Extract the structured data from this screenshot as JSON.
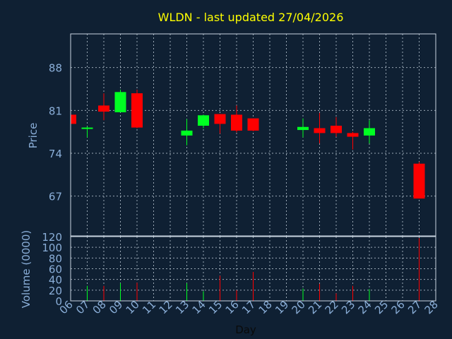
{
  "chart_data": {
    "type": "candlestick",
    "title": "WLDN - last updated 27/04/2026",
    "xlabel": "Day",
    "ylabel": "Price",
    "volume_label": "Volume (0000)",
    "x_ticks": [
      "06",
      "07",
      "08",
      "09",
      "10",
      "11",
      "12",
      "13",
      "14",
      "15",
      "16",
      "17",
      "18",
      "19",
      "20",
      "21",
      "22",
      "23",
      "24",
      "25",
      "26",
      "27",
      "28"
    ],
    "price_ticks": [
      67,
      74,
      81,
      88
    ],
    "volume_ticks": [
      0,
      20,
      40,
      60,
      80,
      100,
      120
    ],
    "price_range": [
      60.5,
      93.5
    ],
    "volume_range": [
      0,
      120
    ],
    "grid": true,
    "colors": {
      "background": "#0f2033",
      "title": "#ffff00",
      "up": "#00ff22",
      "down": "#ff0000",
      "axis_text": "#8aaed8",
      "grid": "#c8d4e0"
    },
    "candles": [
      {
        "day": "06",
        "open": 80.3,
        "high": 80.3,
        "low": 78.8,
        "close": 78.8,
        "volume": 0
      },
      {
        "day": "07",
        "open": 78.1,
        "high": 78.4,
        "low": 76.6,
        "close": 78.2,
        "volume": 28
      },
      {
        "day": "08",
        "open": 81.8,
        "high": 83.8,
        "low": 79.4,
        "close": 80.8,
        "volume": 28
      },
      {
        "day": "09",
        "open": 80.7,
        "high": 84.4,
        "low": 80.7,
        "close": 84.0,
        "volume": 33
      },
      {
        "day": "10",
        "open": 83.8,
        "high": 84.4,
        "low": 78.1,
        "close": 78.2,
        "volume": 34
      },
      {
        "day": "13",
        "open": 76.9,
        "high": 79.6,
        "low": 75.3,
        "close": 77.7,
        "volume": 33
      },
      {
        "day": "14",
        "open": 78.5,
        "high": 80.3,
        "low": 78.1,
        "close": 80.2,
        "volume": 18
      },
      {
        "day": "15",
        "open": 80.4,
        "high": 80.4,
        "low": 77.2,
        "close": 78.8,
        "volume": 47
      },
      {
        "day": "16",
        "open": 80.3,
        "high": 81.8,
        "low": 77.4,
        "close": 77.7,
        "volume": 20
      },
      {
        "day": "17",
        "open": 79.7,
        "high": 79.7,
        "low": 77.6,
        "close": 77.7,
        "volume": 54
      },
      {
        "day": "20",
        "open": 77.8,
        "high": 79.7,
        "low": 76.6,
        "close": 78.3,
        "volume": 23
      },
      {
        "day": "21",
        "open": 78.1,
        "high": 80.6,
        "low": 75.6,
        "close": 77.3,
        "volume": 32
      },
      {
        "day": "22",
        "open": 78.5,
        "high": 79.9,
        "low": 76.7,
        "close": 77.3,
        "volume": 14
      },
      {
        "day": "23",
        "open": 77.3,
        "high": 77.5,
        "low": 74.6,
        "close": 76.7,
        "volume": 28
      },
      {
        "day": "24",
        "open": 76.9,
        "high": 79.4,
        "low": 75.6,
        "close": 78.1,
        "volume": 22
      },
      {
        "day": "27",
        "open": 72.3,
        "high": 72.6,
        "low": 66.6,
        "close": 66.6,
        "volume": 117
      }
    ]
  }
}
